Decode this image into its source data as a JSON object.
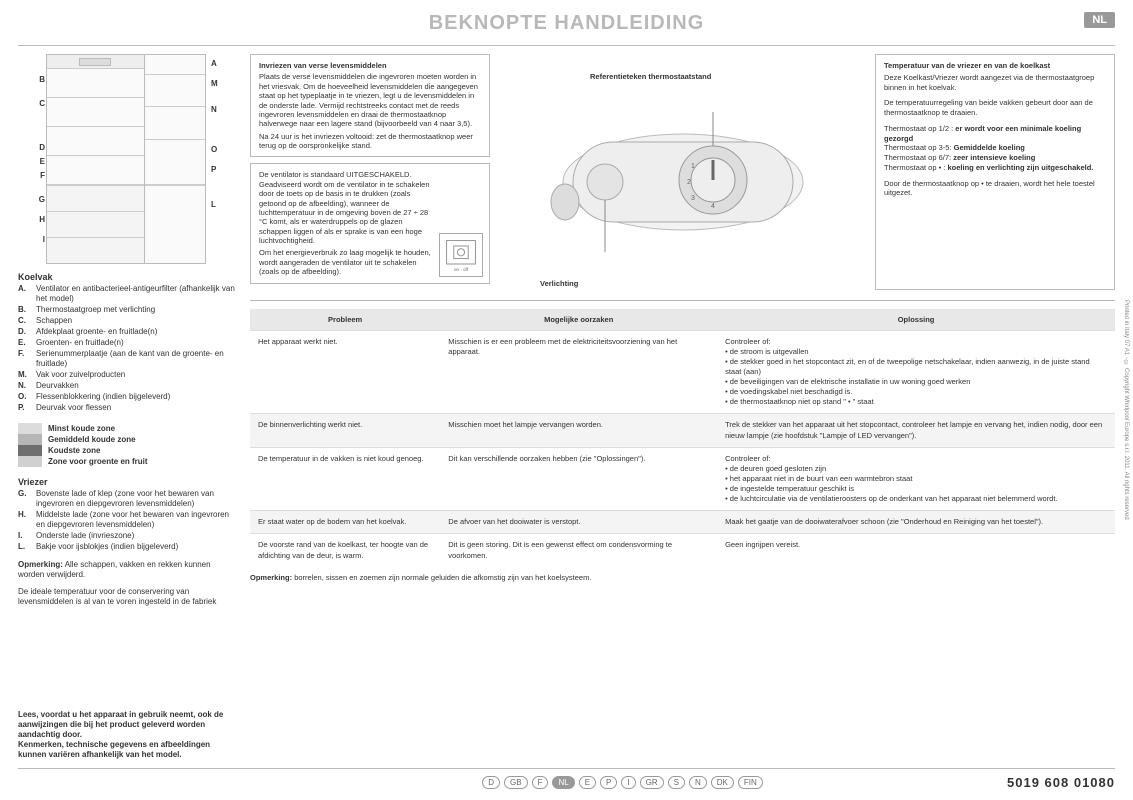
{
  "header": {
    "title": "BEKNOPTE HANDLEIDING",
    "lang_badge": "NL"
  },
  "diagram": {
    "callouts_left": [
      "B",
      "C",
      "D",
      "E",
      "F",
      "G",
      "H",
      "I"
    ],
    "callouts_right": [
      "A",
      "M",
      "N",
      "O",
      "P",
      "L"
    ]
  },
  "koelvak": {
    "heading": "Koelvak",
    "items": [
      {
        "l": "A.",
        "t": "Ventilator en antibacterieel-antigeurfilter (afhankelijk van het model)"
      },
      {
        "l": "B.",
        "t": "Thermostaatgroep met verlichting"
      },
      {
        "l": "C.",
        "t": "Schappen"
      },
      {
        "l": "D.",
        "t": "Afdekplaat groente- en fruitlade(n)"
      },
      {
        "l": "E.",
        "t": "Groenten- en fruitlade(n)"
      },
      {
        "l": "F.",
        "t": "Serienummerplaatje (aan de kant van de groente- en fruitlade)"
      },
      {
        "l": "M.",
        "t": "Vak voor zuivelproducten"
      },
      {
        "l": "N.",
        "t": "Deurvakken"
      },
      {
        "l": "O.",
        "t": "Flessenblokkering (indien bijgeleverd)"
      },
      {
        "l": "P.",
        "t": "Deurvak voor flessen"
      }
    ]
  },
  "zones": {
    "colors": [
      "#dcdcdc",
      "#b6b6b6",
      "#6f6f6f",
      "#d0d0d0"
    ],
    "labels": [
      "Minst koude zone",
      "Gemiddeld koude zone",
      "Koudste zone",
      "Zone voor groente en fruit"
    ]
  },
  "vriezer": {
    "heading": "Vriezer",
    "items": [
      {
        "l": "G.",
        "t": "Bovenste lade of klep (zone voor het bewaren van ingevroren en diepgevroren levensmiddelen)"
      },
      {
        "l": "H.",
        "t": "Middelste lade (zone voor het bewaren van ingevroren en diepgevroren levensmiddelen)"
      },
      {
        "l": "I.",
        "t": "Onderste lade (invrieszone)"
      },
      {
        "l": "L.",
        "t": "Bakje voor ijsblokjes (indien bijgeleverd)"
      }
    ]
  },
  "opmerking_left": {
    "label": "Opmerking:",
    "text": "Alle schappen, vakken en rekken kunnen worden verwijderd.",
    "text2": "De ideale temperatuur voor de conservering van levensmiddelen is al van te voren ingesteld in de fabriek"
  },
  "bottom_note": "Lees, voordat u het apparaat in gebruik neemt, ook de aanwijzingen die bij het product geleverd worden aandachtig door.\nKenmerken, technische gegevens en afbeeldingen kunnen variëren afhankelijk van het model.",
  "box1": {
    "title": "Invriezen van verse levensmiddelen",
    "p1": "Plaats de verse levensmiddelen die ingevroren moeten worden in het vriesvak. Om de hoeveelheid levensmiddelen die aangegeven staat op het typeplaatje in te vriezen, legt u de levensmiddelen in de onderste lade. Vermijd rechtstreeks contact met de reeds ingevroren levensmiddelen en draai de thermostaatknop halverwege naar een lagere stand (bijvoorbeeld van 4 naar 3,5).",
    "p2": "Na 24 uur is het invriezen voltooid: zet de thermostaatknop weer terug op de oorspronkelijke stand."
  },
  "box2": {
    "p1": "De ventilator is standaard UITGESCHAKELD.",
    "p2": "Geadviseerd wordt om de ventilator in te schakelen door de toets op de basis in te drukken (zoals getoond op de afbeelding), wanneer de luchttemperatuur in de omgeving boven de 27 ÷ 28 °C komt, als er waterdruppels op de glazen schappen liggen of als er sprake is van een hoge luchtvochtigheid.",
    "p3": "Om het energieverbruik zo laag mogelijk te houden, wordt aangeraden de ventilator uit te schakelen (zoals op de afbeelding).",
    "icon_caption": "on - off"
  },
  "dial_labels": {
    "ref": "Referentieteken thermostaatstand",
    "light": "Verlichting"
  },
  "right_box": {
    "title": "Temperatuur van de vriezer en van de koelkast",
    "p1": "Deze Koelkast/Vriezer wordt aangezet via de thermostaatgroep binnen in het koelvak.",
    "p2": "De temperatuurregeling van beide vakken gebeurt door aan de thermostaatknop te draaien.",
    "lines": [
      "Thermostaat op 1/2 : er wordt voor een minimale koeling gezorgd",
      "Thermostaat op 3-5: Gemiddelde koeling",
      "Thermostaat op 6/7: zeer intensieve koeling",
      "Thermostaat op • : koeling en verlichting zijn uitgeschakeld."
    ],
    "p3": "Door de thermostaatknop op • te draaien, wordt het hele toestel uitgezet."
  },
  "table": {
    "headers": [
      "Probleem",
      "Mogelijke oorzaken",
      "Oplossing"
    ],
    "rows": [
      {
        "p": "Het apparaat werkt niet.",
        "c": "Misschien is er een probleem met de elektriciteitsvoorziening van het apparaat.",
        "o": "Controleer of:\n• de stroom is uitgevallen\n• de stekker goed in het stopcontact zit, en of de tweepolige netschakelaar, indien aanwezig, in de juiste stand staat (aan)\n• de beveiligingen van de elektrische installatie in uw woning goed werken\n• de voedingskabel niet beschadigd is.\n• de thermostaatknop niet op stand \" • \" staat"
      },
      {
        "p": "De binnenverlichting werkt niet.",
        "c": "Misschien moet het lampje vervangen worden.",
        "o": "Trek de stekker van het apparaat uit het stopcontact, controleer het lampje en vervang het, indien nodig, door een nieuw lampje (zie hoofdstuk \"Lampje of LED vervangen\")."
      },
      {
        "p": "De temperatuur in de vakken is niet koud genoeg.",
        "c": "Dit kan verschillende oorzaken hebben (zie \"Oplossingen\").",
        "o": "Controleer of:\n• de deuren goed gesloten zijn\n• het apparaat niet in de buurt van een warmtebron staat\n• de ingestelde temperatuur geschikt is\n• de luchtcirculatie via de ventilatieroosters op de onderkant van het apparaat niet belemmerd wordt."
      },
      {
        "p": "Er staat water op de bodem van het koelvak.",
        "c": "De afvoer van het dooiwater is verstopt.",
        "o": "Maak het gaatje van de dooiwaterafvoer schoon (zie \"Onderhoud en Reiniging van het toestel\")."
      },
      {
        "p": "De voorste rand van de koelkast, ter hoogte van de afdichting van de deur, is warm.",
        "c": "Dit is geen storing. Dit is een gewenst effect om condensvorming te voorkomen.",
        "o": "Geen ingrijpen vereist."
      }
    ],
    "note_label": "Opmerking:",
    "note": "borrelen, sissen en zoemen zijn normale geluiden die afkomstig zijn van het koelsysteem."
  },
  "footer": {
    "langs": [
      "D",
      "GB",
      "F",
      "NL",
      "E",
      "P",
      "I",
      "GR",
      "S",
      "N",
      "DK",
      "FIN"
    ],
    "active": "NL",
    "docnum": "5019 608 01080"
  },
  "side_text": "Printed in Italy   07 A1 - © Copyright Whirlpool Europe s.r.l. 2011. All rights reserved"
}
